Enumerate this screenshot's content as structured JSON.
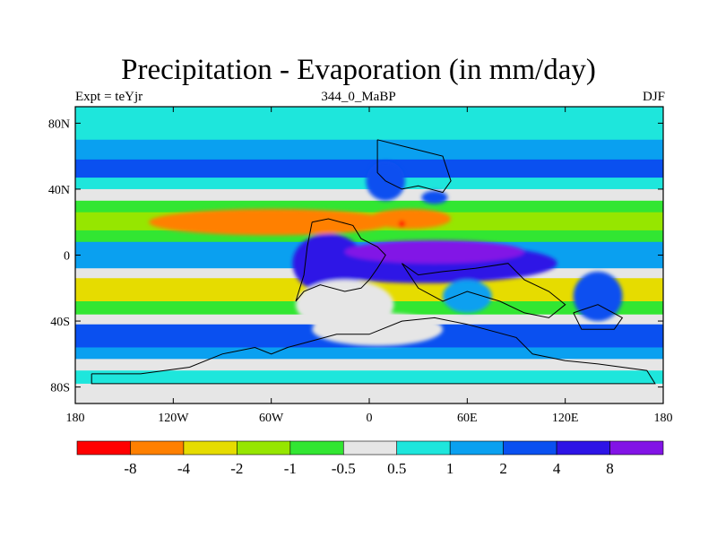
{
  "title": "Precipitation - Evaporation (in mm/day)",
  "subtitle_left": "Expt = teYjr",
  "subtitle_center": "344_0_MaBP",
  "subtitle_right": "DJF",
  "colors": {
    "bins": [
      "#ff0000",
      "#ff8000",
      "#e6dc00",
      "#96e600",
      "#32e632",
      "#e6e6e6",
      "#1ee6dc",
      "#0aa0f0",
      "#0a50f0",
      "#2d14e6",
      "#8214e6"
    ],
    "land_outline": "#000000"
  },
  "chart_data": {
    "type": "heatmap",
    "title": "Precipitation - Evaporation (in mm/day)",
    "xlabel": "",
    "ylabel": "",
    "xlim": [
      -180,
      180
    ],
    "ylim": [
      -90,
      90
    ],
    "x_ticks": [
      -180,
      -120,
      -60,
      0,
      60,
      120,
      180
    ],
    "x_tick_labels": [
      "180",
      "120W",
      "60W",
      "0",
      "60E",
      "120E",
      "180"
    ],
    "y_ticks": [
      80,
      40,
      0,
      -40,
      -80
    ],
    "y_tick_labels": [
      "80N",
      "40N",
      "0",
      "40S",
      "80S"
    ],
    "colorbar_levels": [
      "-8",
      "-4",
      "-2",
      "-1",
      "-0.5",
      "0.5",
      "1",
      "2",
      "4",
      "8"
    ],
    "zonal_bands": [
      {
        "lat_from": 90,
        "lat_to": 70,
        "bin": 6
      },
      {
        "lat_from": 70,
        "lat_to": 58,
        "bin": 7
      },
      {
        "lat_from": 58,
        "lat_to": 47,
        "bin": 8
      },
      {
        "lat_from": 47,
        "lat_to": 40,
        "bin": 6
      },
      {
        "lat_from": 40,
        "lat_to": 33,
        "bin": 5
      },
      {
        "lat_from": 33,
        "lat_to": 26,
        "bin": 4
      },
      {
        "lat_from": 26,
        "lat_to": 15,
        "bin": 3
      },
      {
        "lat_from": 15,
        "lat_to": 8,
        "bin": 4
      },
      {
        "lat_from": 8,
        "lat_to": -8,
        "bin": 7
      },
      {
        "lat_from": -8,
        "lat_to": -14,
        "bin": 5
      },
      {
        "lat_from": -14,
        "lat_to": -28,
        "bin": 2
      },
      {
        "lat_from": -28,
        "lat_to": -36,
        "bin": 4
      },
      {
        "lat_from": -36,
        "lat_to": -42,
        "bin": 5
      },
      {
        "lat_from": -42,
        "lat_to": -56,
        "bin": 8
      },
      {
        "lat_from": -56,
        "lat_to": -63,
        "bin": 7
      },
      {
        "lat_from": -63,
        "lat_to": -70,
        "bin": 5
      },
      {
        "lat_from": -70,
        "lat_to": -78,
        "bin": 6
      },
      {
        "lat_from": -78,
        "lat_to": -90,
        "bin": 5
      }
    ],
    "features": [
      {
        "lon": 35,
        "lat": -5,
        "rx": 80,
        "ry": 12,
        "bin": 9
      },
      {
        "lon": -25,
        "lat": -5,
        "rx": 22,
        "ry": 18,
        "bin": 9
      },
      {
        "lon": 40,
        "lat": 2,
        "rx": 55,
        "ry": 7,
        "bin": 10
      },
      {
        "lon": -60,
        "lat": 20,
        "rx": 75,
        "ry": 8,
        "bin": 1
      },
      {
        "lon": 25,
        "lat": 22,
        "rx": 25,
        "ry": 6,
        "bin": 1
      },
      {
        "lon": 20,
        "lat": 19,
        "rx": 2,
        "ry": 2,
        "bin": 0
      },
      {
        "lon": 10,
        "lat": 45,
        "rx": 12,
        "ry": 12,
        "bin": 8
      },
      {
        "lon": 40,
        "lat": 35,
        "rx": 8,
        "ry": 4,
        "bin": 8
      },
      {
        "lon": 60,
        "lat": -25,
        "rx": 15,
        "ry": 10,
        "bin": 7
      },
      {
        "lon": 140,
        "lat": -25,
        "rx": 15,
        "ry": 15,
        "bin": 8
      },
      {
        "lon": 5,
        "lat": -45,
        "rx": 40,
        "ry": 10,
        "bin": 5
      },
      {
        "lon": -15,
        "lat": -30,
        "rx": 30,
        "ry": 15,
        "bin": 5
      }
    ],
    "land_outlines": [
      [
        [
          -170,
          -72
        ],
        [
          -140,
          -72
        ],
        [
          -110,
          -68
        ],
        [
          -90,
          -60
        ],
        [
          -70,
          -56
        ],
        [
          -60,
          -60
        ],
        [
          -50,
          -56
        ],
        [
          -20,
          -48
        ],
        [
          0,
          -48
        ],
        [
          20,
          -40
        ],
        [
          40,
          -38
        ],
        [
          60,
          -42
        ],
        [
          90,
          -50
        ],
        [
          100,
          -60
        ],
        [
          120,
          -64
        ],
        [
          140,
          -66
        ],
        [
          170,
          -70
        ],
        [
          175,
          -78
        ],
        [
          -170,
          -78
        ],
        [
          -170,
          -72
        ]
      ],
      [
        [
          -35,
          20
        ],
        [
          -25,
          22
        ],
        [
          -10,
          18
        ],
        [
          -5,
          10
        ],
        [
          5,
          5
        ],
        [
          10,
          0
        ],
        [
          5,
          -8
        ],
        [
          0,
          -15
        ],
        [
          -5,
          -20
        ],
        [
          -15,
          -22
        ],
        [
          -30,
          -18
        ],
        [
          -40,
          -22
        ],
        [
          -45,
          -28
        ],
        [
          -40,
          -12
        ],
        [
          -38,
          5
        ],
        [
          -35,
          20
        ]
      ],
      [
        [
          5,
          70
        ],
        [
          25,
          65
        ],
        [
          45,
          60
        ],
        [
          50,
          45
        ],
        [
          45,
          38
        ],
        [
          30,
          42
        ],
        [
          20,
          40
        ],
        [
          10,
          45
        ],
        [
          5,
          50
        ],
        [
          5,
          70
        ]
      ],
      [
        [
          20,
          -5
        ],
        [
          30,
          -12
        ],
        [
          45,
          -10
        ],
        [
          65,
          -8
        ],
        [
          85,
          -5
        ],
        [
          95,
          -15
        ],
        [
          110,
          -22
        ],
        [
          120,
          -30
        ],
        [
          110,
          -38
        ],
        [
          95,
          -35
        ],
        [
          80,
          -28
        ],
        [
          60,
          -22
        ],
        [
          45,
          -28
        ],
        [
          30,
          -20
        ],
        [
          20,
          -5
        ]
      ],
      [
        [
          125,
          -35
        ],
        [
          140,
          -30
        ],
        [
          155,
          -38
        ],
        [
          150,
          -45
        ],
        [
          130,
          -45
        ],
        [
          125,
          -35
        ]
      ]
    ]
  }
}
